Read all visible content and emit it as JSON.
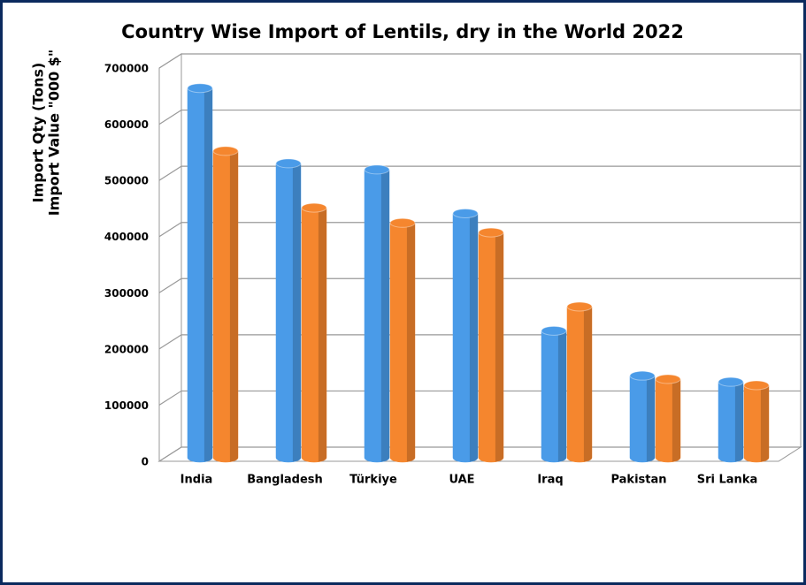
{
  "chart_data": {
    "type": "bar3d",
    "title": "Country Wise Import of Lentils, dry in the World 2022",
    "y_label": [
      "Import Qty (Tons)",
      "Import Value \"000 $\""
    ],
    "categories": [
      "India",
      "Bangladesh",
      "Türkiye",
      "UAE",
      "Iraq",
      "Pakistan",
      "Sri Lanka"
    ],
    "series": [
      {
        "color": "#4a9be8",
        "values": [
          658000,
          524000,
          513000,
          435000,
          226000,
          146000,
          135000
        ]
      },
      {
        "color": "#f5862e",
        "values": [
          546000,
          445000,
          418000,
          401000,
          269000,
          140000,
          129000
        ]
      }
    ],
    "ylim": [
      0,
      700000
    ],
    "yticks": [
      0,
      100000,
      200000,
      300000,
      400000,
      500000,
      600000,
      700000
    ],
    "grid": true
  }
}
